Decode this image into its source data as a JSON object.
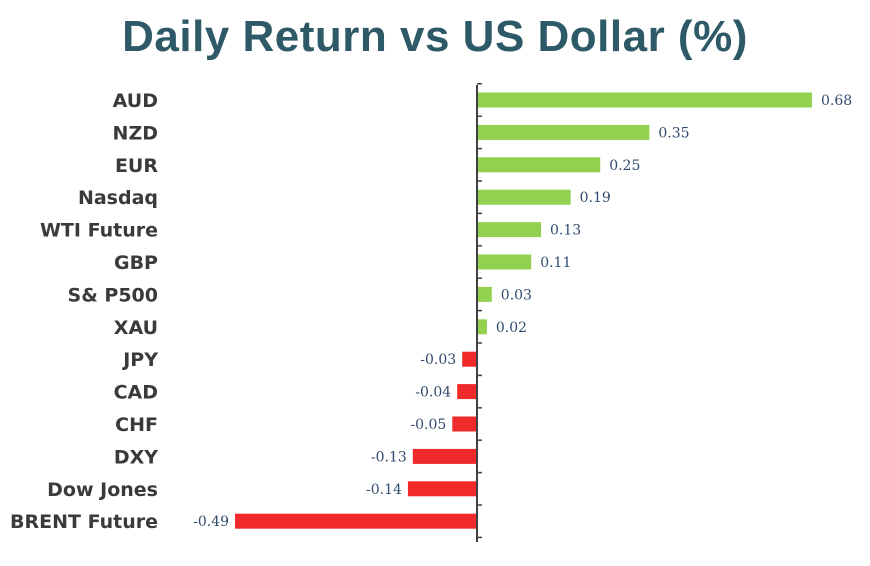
{
  "chart_data": {
    "type": "bar",
    "orientation": "horizontal",
    "title": "Daily Return vs US Dollar (%)",
    "categories": [
      "AUD",
      "NZD",
      "EUR",
      "Nasdaq",
      "WTI Future",
      "GBP",
      "S& P500",
      "XAU",
      "JPY",
      "CAD",
      "CHF",
      "DXY",
      "Dow Jones",
      "BRENT Future"
    ],
    "values": [
      0.68,
      0.35,
      0.25,
      0.19,
      0.13,
      0.11,
      0.03,
      0.02,
      -0.03,
      -0.04,
      -0.05,
      -0.13,
      -0.14,
      -0.49
    ],
    "value_labels": [
      "0.68",
      "0.35",
      "0.25",
      "0.19",
      "0.13",
      "0.11",
      "0.03",
      "0.02",
      "-0.03",
      "-0.04",
      "-0.05",
      "-0.13",
      "-0.14",
      "-0.49"
    ],
    "colors": {
      "positive": "#92d050",
      "negative": "#f02a2a",
      "axis": "#404040",
      "title": "#2e5a68",
      "value_label": "#2f4a6e"
    },
    "xlim": [
      -0.49,
      0.68
    ],
    "grid": false,
    "legend": "none"
  }
}
